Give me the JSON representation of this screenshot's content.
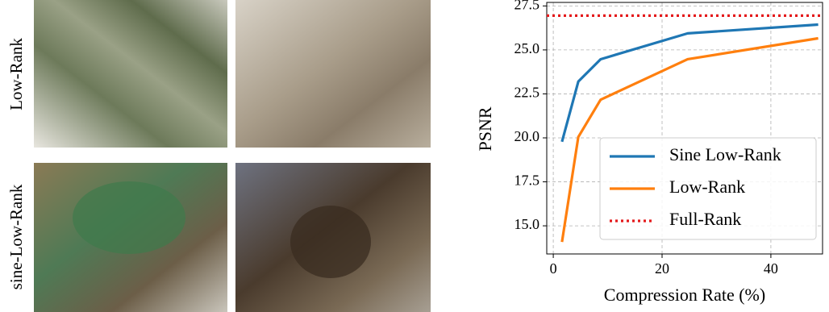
{
  "figure": {
    "row_labels": [
      "Low-Rank",
      "sine-Low-Rank"
    ]
  },
  "chart_data": {
    "type": "line",
    "x_label": "Compression Rate (%)",
    "y_label": "PSNR",
    "series": [
      {
        "name": "Sine Low-Rank",
        "color": "#1f77b4",
        "x": [
          1.6,
          4.6,
          8.7,
          24.7,
          48.7
        ],
        "values": [
          19.78,
          23.2,
          24.47,
          25.94,
          26.44
        ]
      },
      {
        "name": "Low-Rank",
        "color": "#ff7f0e",
        "x": [
          1.6,
          4.6,
          8.7,
          24.7,
          48.7
        ],
        "values": [
          14.08,
          20.05,
          22.17,
          24.47,
          25.66
        ]
      }
    ],
    "reference_lines": [
      {
        "name": "Full-Rank",
        "color": "#e41a1c",
        "value": 26.95,
        "style": "dotted"
      }
    ],
    "xlim": [
      -1.2,
      49.5
    ],
    "ylim": [
      13.4,
      27.7
    ],
    "xticks": [
      0,
      20,
      40
    ],
    "yticks": [
      {
        "value": 15,
        "label": "15.0"
      },
      17.5,
      {
        "value": 20,
        "label": "20.0"
      },
      22.5,
      {
        "value": 25,
        "label": "25.0"
      },
      27.5
    ],
    "grid": true,
    "legend": "lower right"
  }
}
